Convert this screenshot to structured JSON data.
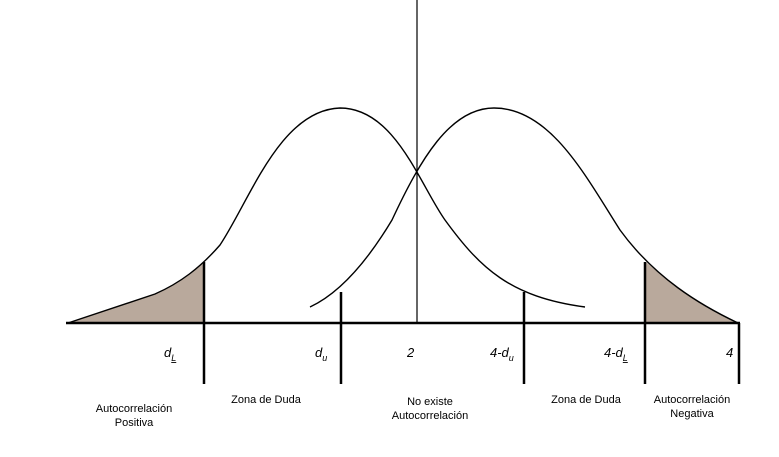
{
  "colors": {
    "background": "#ffffff",
    "line": "#000000",
    "shaded_region": "#b9a99c"
  },
  "axis_labels": {
    "dl_main": "d",
    "dl_sub": "L",
    "du_main": "d",
    "du_sub": "u",
    "center": "2",
    "four_minus_du_main": "4-d",
    "four_minus_du_sub": "u",
    "four_minus_dl_main": "4-d",
    "four_minus_dl_sub": "L",
    "four": "4"
  },
  "regions": {
    "positive_line1": "Autocorrelación",
    "positive_line2": "Positiva",
    "doubt_left": "Zona de Duda",
    "none_line1": "No existe",
    "none_line2": "Autocorrelación",
    "doubt_right": "Zona de Duda",
    "negative_line1": "Autocorrelación",
    "negative_line2": "Negativa"
  }
}
